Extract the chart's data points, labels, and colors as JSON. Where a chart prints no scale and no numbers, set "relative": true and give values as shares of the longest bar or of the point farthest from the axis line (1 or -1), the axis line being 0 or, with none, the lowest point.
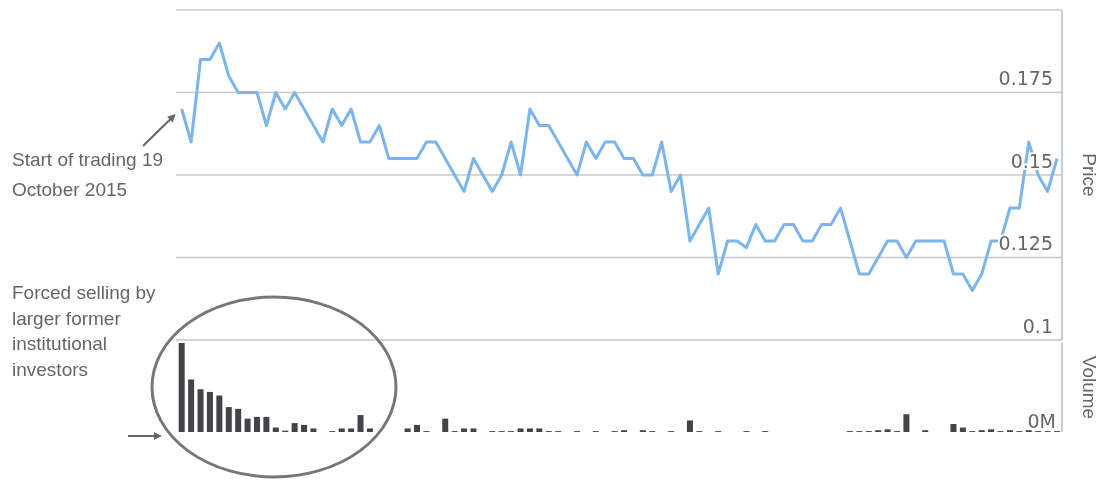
{
  "chart_data": [
    {
      "type": "line",
      "ylabel": "Price",
      "grid": "y",
      "ylim": [
        0.1,
        0.2
      ],
      "yticks": [
        0.1,
        0.125,
        0.15,
        0.175,
        {
          "value": 0.2,
          "label": null
        }
      ],
      "categories": [
        null,
        null,
        null,
        null,
        null,
        null,
        null,
        null,
        null,
        null,
        null,
        null,
        null,
        null,
        null,
        null,
        null,
        null,
        null,
        null,
        null,
        null,
        null,
        null,
        null,
        null,
        null,
        null,
        null,
        null,
        null,
        null,
        null,
        null,
        null,
        null,
        null,
        null,
        null,
        null,
        null,
        null,
        null,
        null,
        null,
        null,
        null,
        null,
        null,
        null,
        null,
        null,
        null,
        null,
        null,
        null,
        null,
        null,
        null,
        null,
        null,
        null,
        null,
        null,
        null,
        null,
        null,
        null,
        null,
        null,
        null,
        null,
        null,
        null,
        null,
        null,
        null,
        null,
        null,
        null,
        null,
        null,
        null,
        null,
        null,
        null,
        null,
        null,
        null,
        null,
        null,
        null,
        null,
        null
      ],
      "series": [
        {
          "color": "#7cb5ec",
          "values": [
            0.17,
            0.16,
            0.185,
            0.185,
            0.19,
            0.18,
            0.175,
            0.175,
            0.175,
            0.165,
            0.175,
            0.17,
            0.175,
            0.17,
            0.165,
            0.16,
            0.17,
            0.165,
            0.17,
            0.16,
            0.16,
            0.165,
            0.155,
            0.155,
            0.155,
            0.155,
            0.16,
            0.16,
            0.155,
            0.15,
            0.145,
            0.155,
            0.15,
            0.145,
            0.15,
            0.16,
            0.15,
            0.17,
            0.165,
            0.165,
            0.16,
            0.155,
            0.15,
            0.16,
            0.155,
            0.16,
            0.16,
            0.155,
            0.155,
            0.15,
            0.15,
            0.16,
            0.145,
            0.15,
            0.13,
            0.135,
            0.14,
            0.12,
            0.13,
            0.13,
            0.128,
            0.135,
            0.13,
            0.13,
            0.135,
            0.135,
            0.13,
            0.13,
            0.135,
            0.135,
            0.14,
            0.13,
            0.12,
            0.12,
            0.125,
            0.13,
            0.13,
            0.125,
            0.13,
            0.13,
            0.13,
            0.13,
            0.12,
            0.12,
            0.115,
            0.12,
            0.13,
            0.13,
            0.14,
            0.14,
            0.16,
            0.15,
            0.145,
            0.155
          ]
        }
      ],
      "annotations": [
        "Start of trading 19 October 2015"
      ]
    },
    {
      "type": "bar",
      "ylabel": "Volume",
      "relative": true,
      "color": "#434348",
      "categories": [
        null,
        null,
        null,
        null,
        null,
        null,
        null,
        null,
        null,
        null,
        null,
        null,
        null,
        null,
        null,
        null,
        null,
        null,
        null,
        null,
        null,
        null,
        null,
        null,
        null,
        null,
        null,
        null,
        null,
        null,
        null,
        null,
        null,
        null,
        null,
        null,
        null,
        null,
        null,
        null,
        null,
        null,
        null,
        null,
        null,
        null,
        null,
        null,
        null,
        null,
        null,
        null,
        null,
        null,
        null,
        null,
        null,
        null,
        null,
        null,
        null,
        null,
        null,
        null,
        null,
        null,
        null,
        null,
        null,
        null,
        null,
        null,
        null,
        null,
        null,
        null,
        null,
        null,
        null,
        null,
        null,
        null,
        null,
        null,
        null,
        null,
        null,
        null,
        null,
        null,
        null,
        null,
        null,
        null
      ],
      "values": [
        1.0,
        0.59,
        0.48,
        0.45,
        0.41,
        0.28,
        0.26,
        0.15,
        0.17,
        0.17,
        0.05,
        0.015,
        0.1,
        0.08,
        0.04,
        0,
        0.01,
        0.04,
        0.04,
        0.19,
        0.04,
        null,
        0,
        0,
        0.04,
        0.08,
        0.01,
        0,
        0.15,
        0.01,
        0.04,
        0.04,
        0,
        0.01,
        0.01,
        0.01,
        0.04,
        0.04,
        0.04,
        0.01,
        0.01,
        0,
        0.01,
        0,
        0.01,
        0,
        0.01,
        0.02,
        0,
        0.02,
        0.01,
        0,
        0.01,
        0,
        0.13,
        0.01,
        0,
        0.01,
        0,
        0,
        0.01,
        0,
        0.01,
        0,
        0,
        0,
        0,
        0,
        0,
        0,
        0,
        0.01,
        0.01,
        0.01,
        0.02,
        0.03,
        0.01,
        0.2,
        0,
        0.02,
        0,
        0,
        0.09,
        0.05,
        0.01,
        0.02,
        0.03,
        0.01,
        0.02,
        0.01,
        0.02,
        0.01,
        0.01,
        0.01
      ],
      "annotations": [
        "Forced selling by larger former institutional investors",
        {
          "text": "0M",
          "y": 0
        }
      ]
    }
  ]
}
